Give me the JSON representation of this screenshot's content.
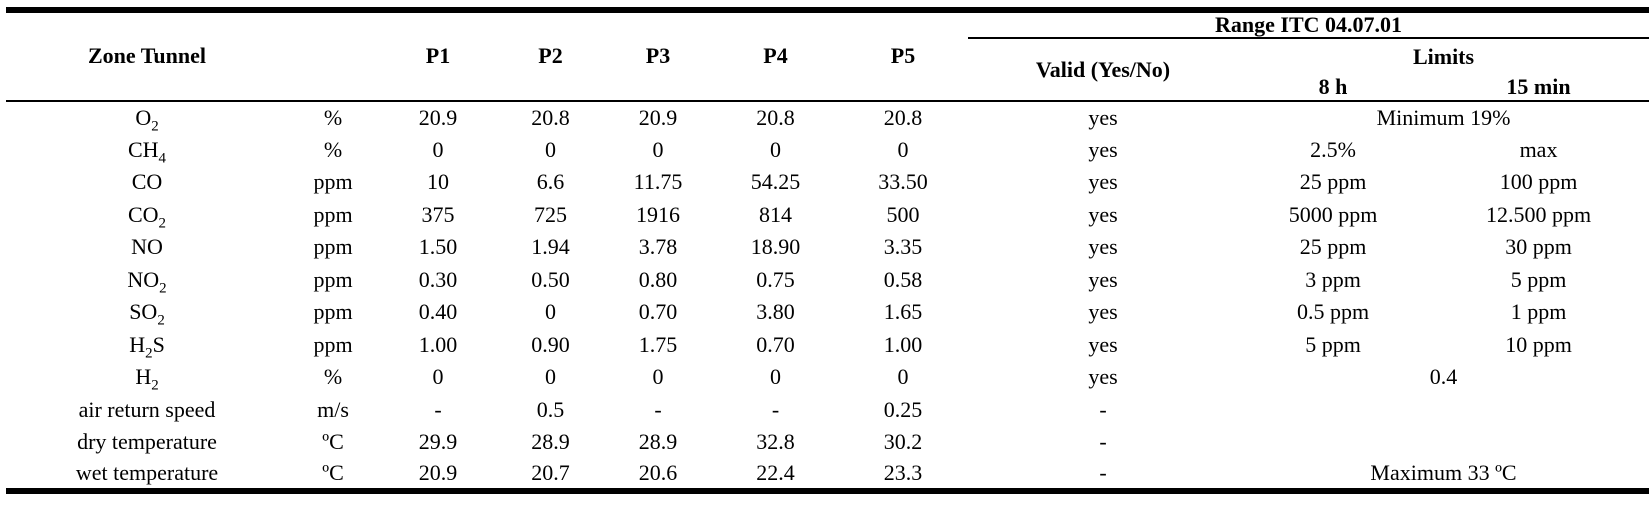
{
  "table": {
    "header": {
      "zone_tunnel": "Zone Tunnel",
      "p_columns": [
        "P1",
        "P2",
        "P3",
        "P4",
        "P5"
      ],
      "range_title": "Range ITC 04.07.01",
      "valid_label": "Valid (Yes/No)",
      "limits_label": "Limits",
      "limit_8h_label": "8 h",
      "limit_15min_label": "15 min"
    },
    "rows": [
      {
        "substance": "O_2",
        "unit": "%",
        "values": [
          "20.9",
          "20.8",
          "20.9",
          "20.8",
          "20.8"
        ],
        "valid": "yes",
        "limit_span": "Minimum 19%"
      },
      {
        "substance": "CH_4",
        "unit": "%",
        "values": [
          "0",
          "0",
          "0",
          "0",
          "0"
        ],
        "valid": "yes",
        "limit_8h": "2.5%",
        "limit_15min": "max"
      },
      {
        "substance": "CO",
        "unit": "ppm",
        "values": [
          "10",
          "6.6",
          "11.75",
          "54.25",
          "33.50"
        ],
        "valid": "yes",
        "limit_8h": "25 ppm",
        "limit_15min": "100 ppm"
      },
      {
        "substance": "CO_2",
        "unit": "ppm",
        "values": [
          "375",
          "725",
          "1916",
          "814",
          "500"
        ],
        "valid": "yes",
        "limit_8h": "5000 ppm",
        "limit_15min": "12.500 ppm"
      },
      {
        "substance": "NO",
        "unit": "ppm",
        "values": [
          "1.50",
          "1.94",
          "3.78",
          "18.90",
          "3.35"
        ],
        "valid": "yes",
        "limit_8h": "25 ppm",
        "limit_15min": "30 ppm"
      },
      {
        "substance": "NO_2",
        "unit": "ppm",
        "values": [
          "0.30",
          "0.50",
          "0.80",
          "0.75",
          "0.58"
        ],
        "valid": "yes",
        "limit_8h": "3 ppm",
        "limit_15min": "5 ppm"
      },
      {
        "substance": "SO_2",
        "unit": "ppm",
        "values": [
          "0.40",
          "0",
          "0.70",
          "3.80",
          "1.65"
        ],
        "valid": "yes",
        "limit_8h": "0.5 ppm",
        "limit_15min": "1 ppm"
      },
      {
        "substance": "H_2S",
        "unit": "ppm",
        "values": [
          "1.00",
          "0.90",
          "1.75",
          "0.70",
          "1.00"
        ],
        "valid": "yes",
        "limit_8h": "5 ppm",
        "limit_15min": "10 ppm"
      },
      {
        "substance": "H_2",
        "unit": "%",
        "values": [
          "0",
          "0",
          "0",
          "0",
          "0"
        ],
        "valid": "yes",
        "limit_span": "0.4"
      },
      {
        "substance": "air return speed",
        "unit": "m/s",
        "values": [
          "-",
          "0.5",
          "-",
          "-",
          "0.25"
        ],
        "valid": "-",
        "limit_span": ""
      },
      {
        "substance": "dry temperature",
        "unit": "ºC",
        "values": [
          "29.9",
          "28.9",
          "28.9",
          "32.8",
          "30.2"
        ],
        "valid": "-",
        "limit_span": ""
      },
      {
        "substance": "wet temperature",
        "unit": "ºC",
        "values": [
          "20.9",
          "20.7",
          "20.6",
          "22.4",
          "23.3"
        ],
        "valid": "-",
        "limit_span": "Maximum 33 ºC"
      }
    ]
  }
}
